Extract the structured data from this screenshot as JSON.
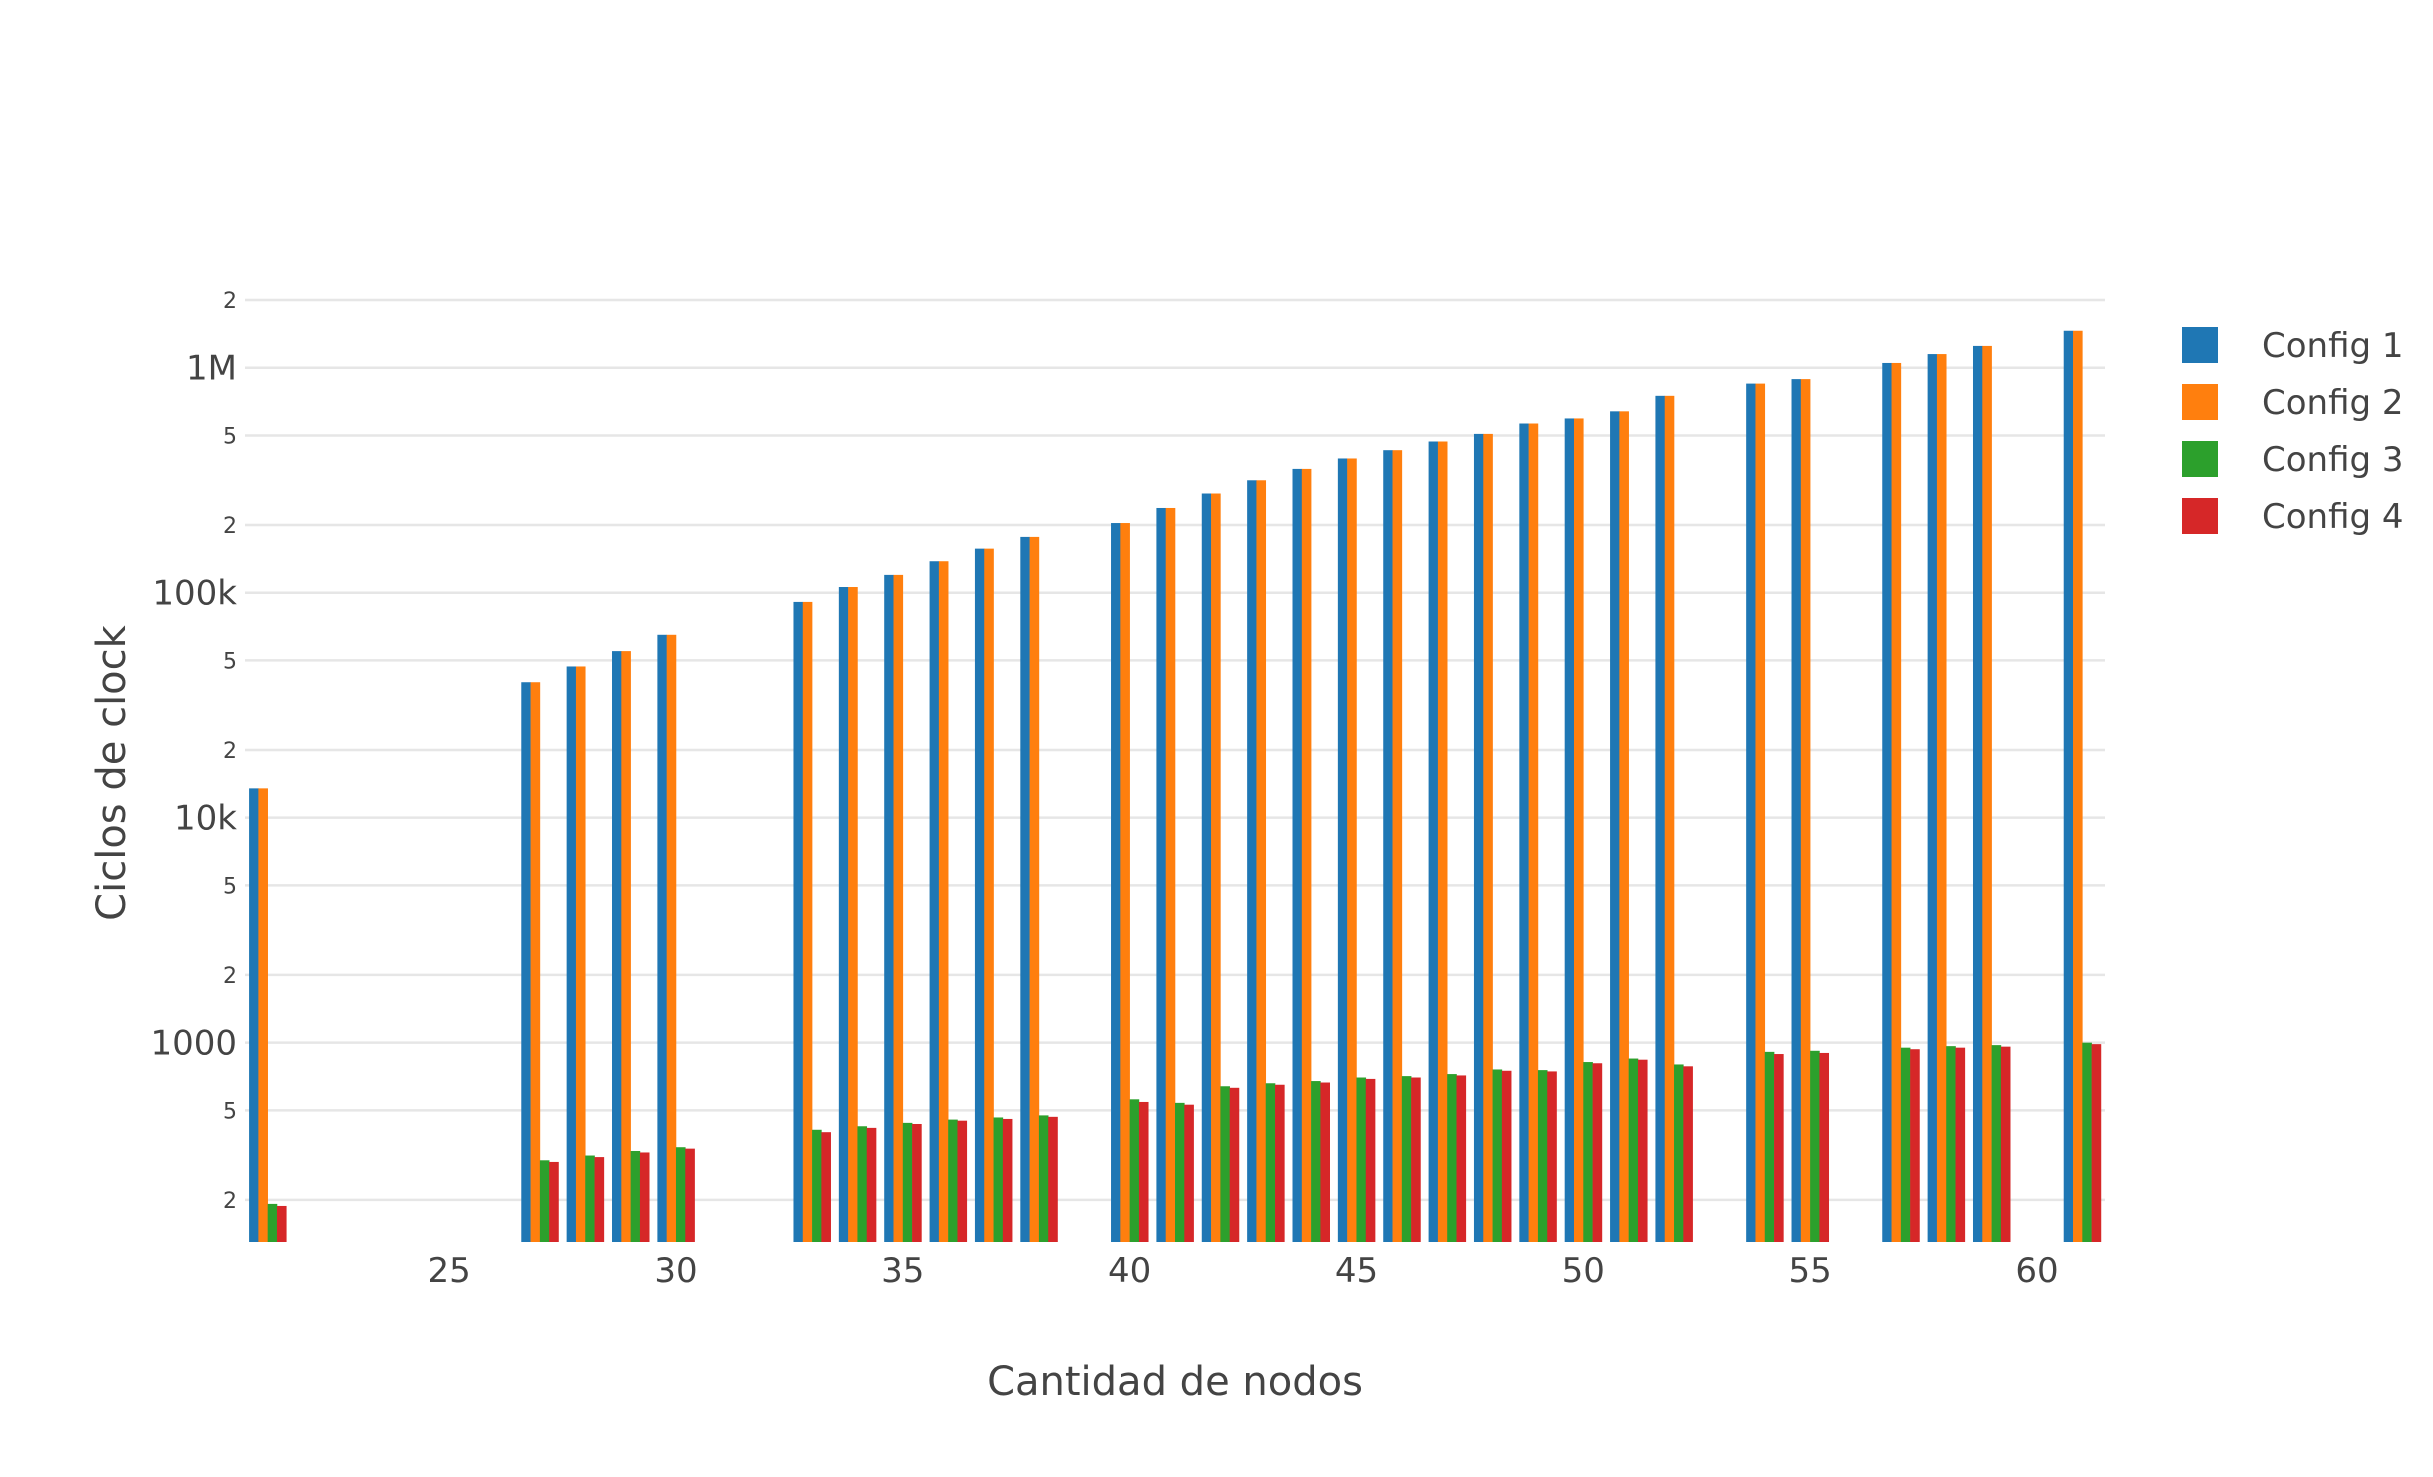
{
  "chart_data": {
    "type": "bar",
    "title": "",
    "xlabel": "Cantidad de nodos",
    "ylabel": "Ciclos de clock",
    "y_scale": "log",
    "ylim": [
      130,
      2000000
    ],
    "xlim": [
      20.5,
      61.5
    ],
    "grid": true,
    "legend_position": "right",
    "x_ticks": [
      "25",
      "30",
      "35",
      "40",
      "45",
      "50",
      "55",
      "60"
    ],
    "y_major_ticks": [
      {
        "value": 1000,
        "label": "1000"
      },
      {
        "value": 10000,
        "label": "10k"
      },
      {
        "value": 100000,
        "label": "100k"
      },
      {
        "value": 1000000,
        "label": "1M"
      }
    ],
    "y_minor_ticks": [
      {
        "value": 200,
        "label": "2"
      },
      {
        "value": 500,
        "label": "5"
      },
      {
        "value": 2000,
        "label": "2"
      },
      {
        "value": 5000,
        "label": "5"
      },
      {
        "value": 20000,
        "label": "2"
      },
      {
        "value": 50000,
        "label": "5"
      },
      {
        "value": 200000,
        "label": "2"
      },
      {
        "value": 500000,
        "label": "5"
      },
      {
        "value": 2000000,
        "label": "2"
      }
    ],
    "x": [
      21,
      27,
      28,
      29,
      30,
      33,
      34,
      35,
      36,
      37,
      38,
      40,
      41,
      42,
      43,
      44,
      45,
      46,
      47,
      48,
      49,
      50,
      51,
      52,
      54,
      55,
      57,
      58,
      59,
      61
    ],
    "series": [
      {
        "name": "Config 1",
        "color": "#1f77b4",
        "values": [
          13500,
          40000,
          47000,
          55000,
          65000,
          91000,
          106000,
          120000,
          138000,
          157000,
          177000,
          204000,
          238000,
          276000,
          316000,
          355000,
          395000,
          430000,
          470000,
          508000,
          565000,
          595000,
          640000,
          750000,
          850000,
          890000,
          1050000,
          1150000,
          1250000,
          1460000
        ]
      },
      {
        "name": "Config 2",
        "color": "#ff7f0e",
        "values": [
          13500,
          40000,
          47000,
          55000,
          65000,
          91000,
          106000,
          120000,
          138000,
          157000,
          177000,
          204000,
          238000,
          276000,
          316000,
          355000,
          395000,
          430000,
          470000,
          508000,
          565000,
          595000,
          640000,
          750000,
          850000,
          890000,
          1050000,
          1150000,
          1250000,
          1460000
        ]
      },
      {
        "name": "Config 3",
        "color": "#2ca02c",
        "values": [
          192,
          300,
          315,
          330,
          343,
          410,
          425,
          440,
          455,
          465,
          475,
          560,
          540,
          640,
          660,
          675,
          700,
          710,
          725,
          760,
          755,
          820,
          850,
          800,
          910,
          920,
          950,
          965,
          975,
          1000
        ]
      },
      {
        "name": "Config 4",
        "color": "#d62728",
        "values": [
          188,
          295,
          310,
          325,
          338,
          400,
          418,
          435,
          450,
          458,
          468,
          545,
          530,
          630,
          650,
          665,
          690,
          700,
          715,
          750,
          745,
          810,
          840,
          785,
          890,
          900,
          935,
          950,
          960,
          985
        ]
      }
    ]
  }
}
